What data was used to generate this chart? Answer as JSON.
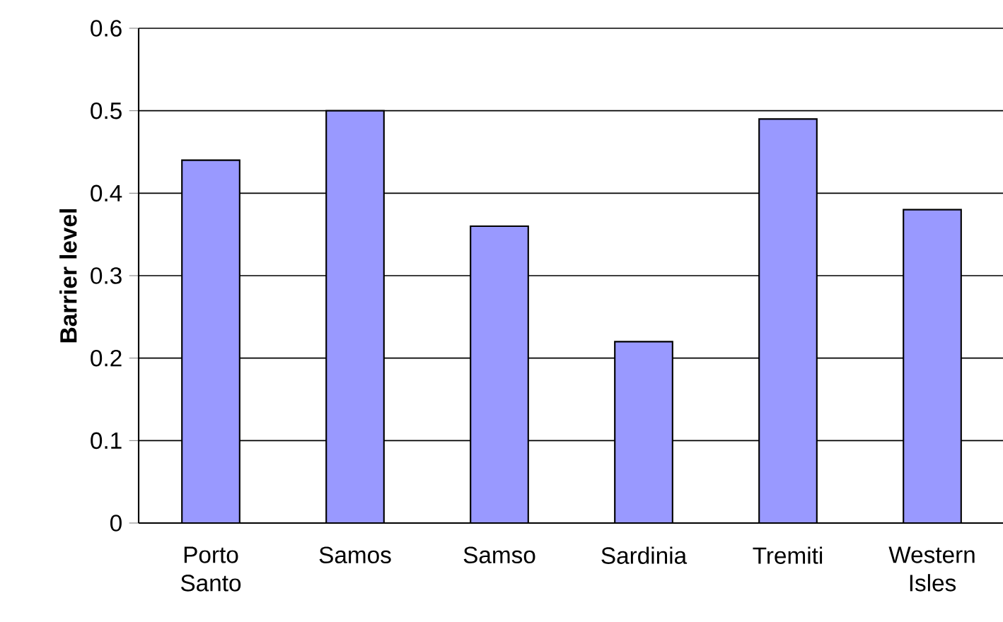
{
  "chart_data": {
    "type": "bar",
    "ylabel": "Barrier level",
    "categories": [
      "Porto Santo",
      "Samos",
      "Samso",
      "Sardinia",
      "Tremiti",
      "Western Isles"
    ],
    "values": [
      0.44,
      0.5,
      0.36,
      0.22,
      0.49,
      0.38
    ],
    "color": "#9999ff",
    "ylim": [
      0,
      0.6
    ],
    "yticks": [
      0,
      0.1,
      0.2,
      0.3,
      0.4,
      0.5,
      0.6
    ],
    "grid": "y"
  }
}
